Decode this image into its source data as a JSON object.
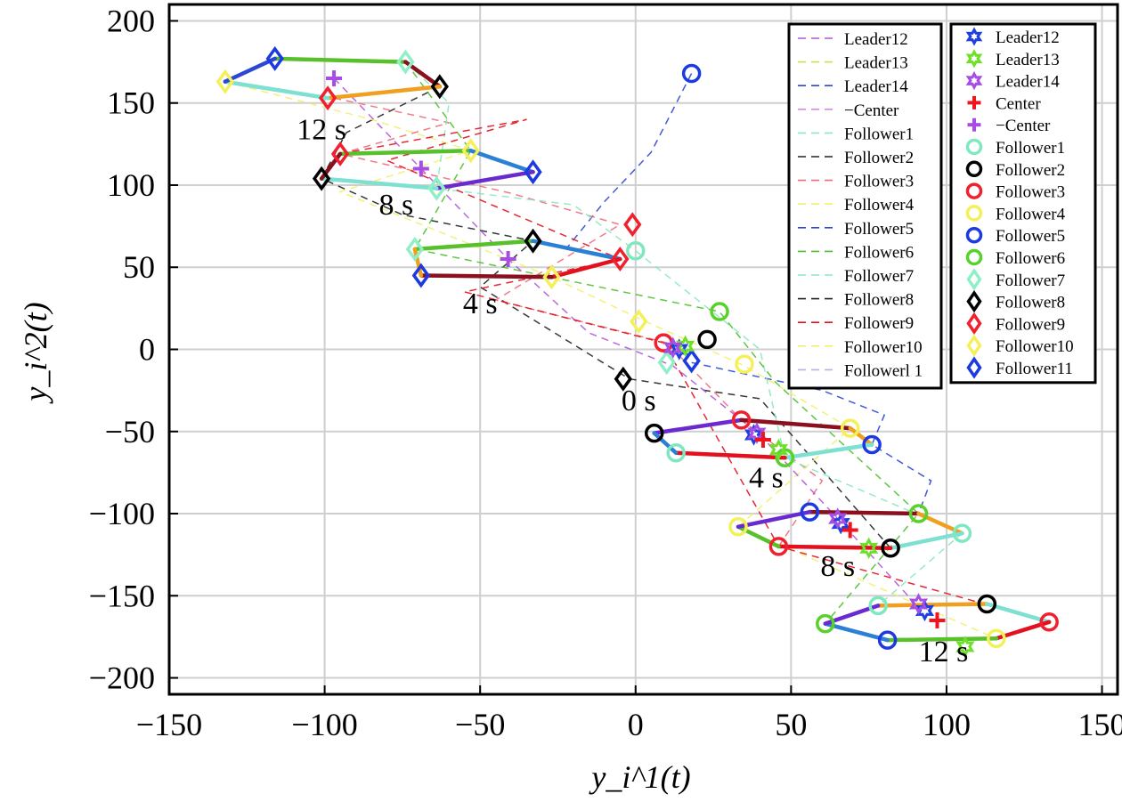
{
  "chart_data": {
    "type": "scatter",
    "xlabel": "y_i^1(t)",
    "ylabel": "y_i^2(t)",
    "xlim": [
      -150,
      155
    ],
    "ylim": [
      -210,
      210
    ],
    "xticks": [
      -150,
      -100,
      -50,
      0,
      50,
      100,
      150
    ],
    "yticks": [
      -200,
      -150,
      -100,
      -50,
      0,
      50,
      100,
      150,
      200
    ],
    "xtick_labels": [
      "−150",
      "−100",
      "−50",
      "0",
      "50",
      "100",
      "150"
    ],
    "ytick_labels": [
      "−200",
      "−150",
      "−100",
      "−50",
      "0",
      "50",
      "100",
      "150",
      "200"
    ],
    "grid": true,
    "annotations": [
      {
        "text": "12 s",
        "x": -101,
        "y": 128
      },
      {
        "text": "8 s",
        "x": -77,
        "y": 82
      },
      {
        "text": "4 s",
        "x": -50,
        "y": 22
      },
      {
        "text": "0 s",
        "x": 1,
        "y": -37
      },
      {
        "text": "4 s",
        "x": 42,
        "y": -84
      },
      {
        "text": "8 s",
        "x": 65,
        "y": -138
      },
      {
        "text": "12 s",
        "x": 99,
        "y": -190
      }
    ],
    "legend_lines": {
      "placement": "top-right",
      "entries": [
        {
          "label": "Leader12",
          "color": "#b257d8",
          "dash": "9,6"
        },
        {
          "label": "Leader13",
          "color": "#c9e34a",
          "dash": "9,6"
        },
        {
          "label": "Leader14",
          "color": "#2b47d4",
          "dash": "9,6"
        },
        {
          "label": "−Center",
          "color": "#d58be6",
          "dash": "9,6"
        },
        {
          "label": "Follower1",
          "color": "#8ae8c0",
          "dash": "9,6"
        },
        {
          "label": "Follower2",
          "color": "#222222",
          "dash": "9,6"
        },
        {
          "label": "Follower3",
          "color": "#f06b7a",
          "dash": "9,6"
        },
        {
          "label": "Follower4",
          "color": "#f2f06a",
          "dash": "9,6"
        },
        {
          "label": "Follower5",
          "color": "#2b47d4",
          "dash": "9,6"
        },
        {
          "label": "Follower6",
          "color": "#4ec02d",
          "dash": "9,6"
        },
        {
          "label": "Follower7",
          "color": "#8ae8c0",
          "dash": "9,6"
        },
        {
          "label": "Follower8",
          "color": "#222222",
          "dash": "9,6"
        },
        {
          "label": "Follower9",
          "color": "#e3101e",
          "dash": "9,6"
        },
        {
          "label": "Follower10",
          "color": "#f2f06a",
          "dash": "9,6"
        },
        {
          "label": "Followerl 1",
          "color": "#b3b3e8",
          "dash": "9,6"
        }
      ]
    },
    "legend_markers": {
      "placement": "top-right",
      "entries": [
        {
          "label": "Leader12",
          "color": "#1f3fe0",
          "marker": "star"
        },
        {
          "label": "Leader13",
          "color": "#6fe02a",
          "marker": "star"
        },
        {
          "label": "Leader14",
          "color": "#a64de6",
          "marker": "star"
        },
        {
          "label": "Center",
          "color": "#f0141e",
          "marker": "plus"
        },
        {
          "label": "−Center",
          "color": "#a64de6",
          "marker": "plus"
        },
        {
          "label": "Follower1",
          "color": "#7fe8c0",
          "marker": "circle"
        },
        {
          "label": "Follower2",
          "color": "#000000",
          "marker": "circle"
        },
        {
          "label": "Follower3",
          "color": "#f0202e",
          "marker": "circle"
        },
        {
          "label": "Follower4",
          "color": "#f4f05a",
          "marker": "circle"
        },
        {
          "label": "Follower5",
          "color": "#1c3ae0",
          "marker": "circle"
        },
        {
          "label": "Follower6",
          "color": "#58d22a",
          "marker": "circle"
        },
        {
          "label": "Follower7",
          "color": "#8ff0c8",
          "marker": "diamond"
        },
        {
          "label": "Follower8",
          "color": "#000000",
          "marker": "diamond"
        },
        {
          "label": "Follower9",
          "color": "#f0202e",
          "marker": "diamond"
        },
        {
          "label": "Follower10",
          "color": "#f4f05a",
          "marker": "diamond"
        },
        {
          "label": "Follower11",
          "color": "#1c3ae0",
          "marker": "diamond"
        }
      ]
    },
    "series": [
      {
        "kind": "polygon",
        "group": "upper-12s",
        "points": [
          [
            -116,
            177
          ],
          [
            -74,
            175
          ],
          [
            -63,
            160
          ],
          [
            -99,
            153
          ],
          [
            -132,
            163
          ]
        ],
        "edge_colors": [
          "#58c02a",
          "#8a1020",
          "#f0a020",
          "#7de0d0",
          "#2b47d4"
        ]
      },
      {
        "kind": "polygon",
        "group": "upper-8s",
        "points": [
          [
            -95,
            119
          ],
          [
            -53,
            121
          ],
          [
            -33,
            108
          ],
          [
            -64,
            98
          ],
          [
            -101,
            104
          ]
        ],
        "edge_colors": [
          "#58c02a",
          "#2b7fd4",
          "#6a2ad0",
          "#7de0d0",
          "#8a1020"
        ]
      },
      {
        "kind": "polygon",
        "group": "upper-4s",
        "points": [
          [
            -71,
            61
          ],
          [
            -33,
            66
          ],
          [
            -5,
            55
          ],
          [
            -27,
            44
          ],
          [
            -69,
            45
          ]
        ],
        "edge_colors": [
          "#58c02a",
          "#2b7fd4",
          "#e3101e",
          "#8a1020",
          "#f0a020"
        ]
      },
      {
        "kind": "polygon",
        "group": "lower-4s",
        "points": [
          [
            6,
            -51
          ],
          [
            34,
            -43
          ],
          [
            69,
            -48
          ],
          [
            76,
            -58
          ],
          [
            48,
            -66
          ],
          [
            13,
            -63
          ]
        ],
        "edge_colors": [
          "#6a2ad0",
          "#8a1020",
          "#f0a020",
          "#7de0d0",
          "#e3101e",
          "#2b7fd4"
        ]
      },
      {
        "kind": "polygon",
        "group": "lower-8s",
        "points": [
          [
            56,
            -99
          ],
          [
            91,
            -100
          ],
          [
            105,
            -112
          ],
          [
            82,
            -121
          ],
          [
            46,
            -120
          ],
          [
            33,
            -108
          ]
        ],
        "edge_colors": [
          "#8a1020",
          "#f0a020",
          "#7de0d0",
          "#e3101e",
          "#58c02a",
          "#6a2ad0"
        ]
      },
      {
        "kind": "polygon",
        "group": "lower-12s",
        "points": [
          [
            78,
            -156
          ],
          [
            113,
            -155
          ],
          [
            133,
            -166
          ],
          [
            116,
            -176
          ],
          [
            81,
            -177
          ],
          [
            61,
            -167
          ]
        ],
        "edge_colors": [
          "#f0a020",
          "#7de0d0",
          "#e3101e",
          "#58c02a",
          "#2b7fd4",
          "#6a2ad0"
        ]
      },
      {
        "kind": "trail",
        "name": "Leader12",
        "color": "#2b47d4",
        "points": [
          [
            18,
            168
          ],
          [
            5,
            120
          ],
          [
            -10,
            90
          ],
          [
            -22,
            62
          ]
        ]
      },
      {
        "kind": "trail",
        "name": "Follower5",
        "color": "#2b47d4",
        "points": [
          [
            18,
            -8
          ],
          [
            60,
            -25
          ],
          [
            80,
            -40
          ],
          [
            76,
            -58
          ],
          [
            95,
            -80
          ],
          [
            91,
            -100
          ]
        ]
      },
      {
        "kind": "trail",
        "name": "Follower2",
        "color": "#222222",
        "points": [
          [
            -63,
            160
          ],
          [
            -93,
            132
          ],
          [
            -101,
            104
          ],
          [
            -75,
            82
          ],
          [
            -33,
            66
          ],
          [
            -50,
            38
          ],
          [
            -2,
            -18
          ],
          [
            40,
            -30
          ],
          [
            82,
            -121
          ]
        ]
      },
      {
        "kind": "trail",
        "name": "Follower3",
        "color": "#f06b7a",
        "points": [
          [
            -97,
            153
          ],
          [
            -60,
            138
          ],
          [
            -95,
            119
          ],
          [
            -40,
            95
          ],
          [
            -5,
            76
          ],
          [
            -45,
            30
          ],
          [
            10,
            4
          ],
          [
            34,
            -43
          ],
          [
            60,
            -80
          ],
          [
            46,
            -120
          ]
        ]
      },
      {
        "kind": "trail",
        "name": "Follower4",
        "color": "#f2f06a",
        "points": [
          [
            -132,
            163
          ],
          [
            -85,
            140
          ],
          [
            -53,
            121
          ],
          [
            -95,
            96
          ],
          [
            -27,
            44
          ],
          [
            2,
            18
          ],
          [
            35,
            -10
          ],
          [
            69,
            -48
          ],
          [
            33,
            -108
          ],
          [
            116,
            -176
          ]
        ]
      },
      {
        "kind": "trail",
        "name": "Follower1",
        "color": "#8ae8c0",
        "points": [
          [
            -74,
            175
          ],
          [
            -60,
            150
          ],
          [
            -64,
            98
          ],
          [
            -20,
            88
          ],
          [
            0,
            60
          ],
          [
            40,
            0
          ],
          [
            48,
            -66
          ],
          [
            105,
            -112
          ],
          [
            78,
            -156
          ]
        ]
      },
      {
        "kind": "trail",
        "name": "Follower6",
        "color": "#4ec02d",
        "points": [
          [
            -74,
            175
          ],
          [
            -53,
            121
          ],
          [
            -71,
            61
          ],
          [
            27,
            23
          ],
          [
            45,
            -20
          ],
          [
            91,
            -100
          ],
          [
            61,
            -167
          ]
        ]
      },
      {
        "kind": "trail",
        "name": "Leader14",
        "color": "#b257d8",
        "points": [
          [
            -97,
            165
          ],
          [
            -69,
            110
          ],
          [
            -41,
            55
          ],
          [
            -15,
            10
          ],
          [
            12,
            -10
          ],
          [
            40,
            -52
          ],
          [
            65,
            -103
          ],
          [
            90,
            -155
          ]
        ]
      },
      {
        "kind": "trail",
        "name": "Follower9",
        "color": "#e3101e",
        "points": [
          [
            -95,
            119
          ],
          [
            -35,
            140
          ],
          [
            -80,
            115
          ],
          [
            -5,
            55
          ],
          [
            -55,
            35
          ],
          [
            9,
            4
          ],
          [
            46,
            -120
          ],
          [
            133,
            -166
          ]
        ]
      }
    ],
    "markers": [
      {
        "name": "Follower7",
        "marker": "diamond",
        "color": "#8ff0c8",
        "points": [
          [
            -74,
            175
          ],
          [
            -64,
            98
          ],
          [
            -71,
            61
          ],
          [
            10,
            -8
          ]
        ]
      },
      {
        "name": "Follower8",
        "marker": "diamond",
        "color": "#000000",
        "points": [
          [
            -63,
            160
          ],
          [
            -101,
            104
          ],
          [
            -33,
            66
          ],
          [
            -4,
            -18
          ]
        ]
      },
      {
        "name": "Follower9",
        "marker": "diamond",
        "color": "#f0202e",
        "points": [
          [
            -99,
            153
          ],
          [
            -95,
            119
          ],
          [
            -5,
            55
          ],
          [
            -1,
            76
          ]
        ]
      },
      {
        "name": "Follower10",
        "marker": "diamond",
        "color": "#f4f05a",
        "points": [
          [
            -132,
            163
          ],
          [
            -53,
            121
          ],
          [
            -27,
            44
          ],
          [
            1,
            17
          ]
        ]
      },
      {
        "name": "Follower11",
        "marker": "diamond",
        "color": "#1c3ae0",
        "points": [
          [
            -116,
            177
          ],
          [
            -33,
            108
          ],
          [
            -69,
            45
          ],
          [
            18,
            -7
          ]
        ]
      },
      {
        "name": "Follower1",
        "marker": "circle",
        "color": "#7fe8c0",
        "points": [
          [
            0,
            60
          ],
          [
            13,
            -63
          ],
          [
            105,
            -112
          ],
          [
            78,
            -156
          ],
          [
            48,
            -66
          ]
        ]
      },
      {
        "name": "Follower2",
        "marker": "circle",
        "color": "#000000",
        "points": [
          [
            23,
            6
          ],
          [
            6,
            -51
          ],
          [
            82,
            -121
          ],
          [
            113,
            -155
          ]
        ]
      },
      {
        "name": "Follower3",
        "marker": "circle",
        "color": "#f0202e",
        "points": [
          [
            9,
            4
          ],
          [
            34,
            -43
          ],
          [
            46,
            -120
          ],
          [
            133,
            -166
          ]
        ]
      },
      {
        "name": "Follower4",
        "marker": "circle",
        "color": "#f4f05a",
        "points": [
          [
            35,
            -9
          ],
          [
            69,
            -48
          ],
          [
            33,
            -108
          ],
          [
            116,
            -176
          ]
        ]
      },
      {
        "name": "Follower5",
        "marker": "circle",
        "color": "#1c3ae0",
        "points": [
          [
            18,
            168
          ],
          [
            76,
            -58
          ],
          [
            56,
            -99
          ],
          [
            81,
            -177
          ]
        ]
      },
      {
        "name": "Follower6",
        "marker": "circle",
        "color": "#58d22a",
        "points": [
          [
            27,
            23
          ],
          [
            48,
            -66
          ],
          [
            91,
            -100
          ],
          [
            61,
            -167
          ]
        ]
      },
      {
        "name": "Leader12",
        "marker": "star",
        "color": "#1f3fe0",
        "points": [
          [
            14,
            0
          ],
          [
            38,
            -52
          ],
          [
            66,
            -106
          ],
          [
            93,
            -159
          ]
        ]
      },
      {
        "name": "Leader13",
        "marker": "star",
        "color": "#6fe02a",
        "points": [
          [
            16,
            2
          ],
          [
            46,
            -61
          ],
          [
            75,
            -121
          ],
          [
            106,
            -181
          ]
        ]
      },
      {
        "name": "Leader14",
        "marker": "star",
        "color": "#a64de6",
        "points": [
          [
            12,
            1
          ],
          [
            39,
            -51
          ],
          [
            65,
            -103
          ],
          [
            91,
            -155
          ]
        ]
      },
      {
        "name": "Center",
        "marker": "plus",
        "color": "#f0141e",
        "points": [
          [
            41,
            -55
          ],
          [
            69,
            -110
          ],
          [
            97,
            -165
          ]
        ]
      },
      {
        "name": "−Center",
        "marker": "plus",
        "color": "#a64de6",
        "points": [
          [
            -97,
            165
          ],
          [
            -69,
            110
          ],
          [
            -41,
            55
          ]
        ]
      }
    ]
  }
}
